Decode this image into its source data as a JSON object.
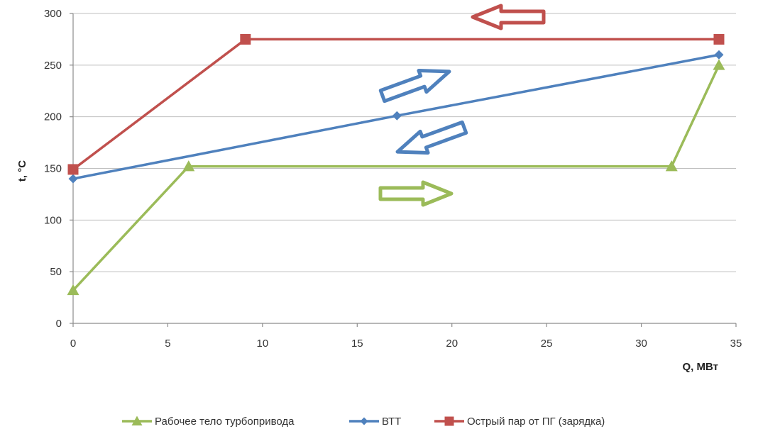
{
  "chart_data": {
    "type": "line",
    "xlabel": "Q, МВт",
    "ylabel": "t, °C",
    "xlim": [
      0,
      35
    ],
    "ylim": [
      0,
      300
    ],
    "x_ticks": [
      0,
      5,
      10,
      15,
      20,
      25,
      30,
      35
    ],
    "y_ticks": [
      0,
      50,
      100,
      150,
      200,
      250,
      300
    ],
    "grid": "horizontal",
    "legend_position": "bottom",
    "series": [
      {
        "name": "Рабочее тело турбопривода",
        "color": "#9BBB59",
        "marker": "triangle",
        "points": [
          [
            0,
            32
          ],
          [
            6.1,
            152
          ],
          [
            31.6,
            152
          ],
          [
            34.1,
            250
          ]
        ]
      },
      {
        "name": "ВТТ",
        "color": "#4F81BD",
        "marker": "diamond",
        "points": [
          [
            0,
            140
          ],
          [
            17.1,
            201
          ],
          [
            34.1,
            260
          ]
        ]
      },
      {
        "name": "Острый пар от ПГ (зарядка)",
        "color": "#C0504D",
        "marker": "square",
        "points": [
          [
            0,
            149
          ],
          [
            9.1,
            275
          ],
          [
            34.1,
            275
          ]
        ]
      }
    ],
    "annotations": [
      {
        "shape": "arrow",
        "direction": "left",
        "color": "#C0504D"
      },
      {
        "shape": "arrow",
        "direction": "up-right",
        "color": "#4F81BD"
      },
      {
        "shape": "arrow",
        "direction": "down-left",
        "color": "#4F81BD"
      },
      {
        "shape": "arrow",
        "direction": "right",
        "color": "#9BBB59"
      }
    ]
  }
}
